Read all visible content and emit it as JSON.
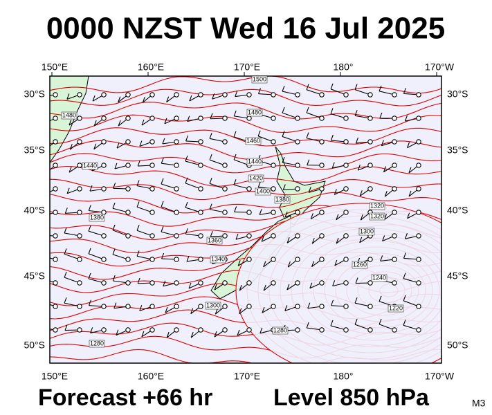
{
  "header": {
    "title": "0000 NZST Wed 16 Jul 2025"
  },
  "map": {
    "longitude_labels": [
      "150°E",
      "160°E",
      "170°E",
      "180°",
      "170°W"
    ],
    "latitude_labels": [
      "30°S",
      "35°S",
      "40°S",
      "45°S",
      "50°S"
    ],
    "contour_labels": [
      "1500",
      "1480",
      "1460",
      "1440",
      "1420",
      "1400",
      "1380",
      "1360",
      "1340",
      "1320",
      "1300",
      "1280",
      "1260",
      "1240",
      "1220",
      "1480",
      "1440",
      "1380",
      "1320",
      "1300",
      "1280"
    ]
  },
  "footer": {
    "forecast": "Forecast +66 hr",
    "level": "Level 850 hPa",
    "model": "M3"
  }
}
